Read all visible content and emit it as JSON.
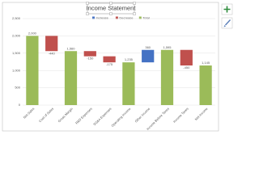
{
  "chart_data": {
    "type": "waterfall",
    "title": "Income Statement",
    "legend": [
      {
        "name": "Increase",
        "color": "#4472c4"
      },
      {
        "name": "Decrease",
        "color": "#c0504d"
      },
      {
        "name": "Total",
        "color": "#9bbb59"
      }
    ],
    "categories": [
      "Net Sales",
      "Cost of Sales",
      "Gross Margin",
      "R&D Expenses",
      "SG&A Expenses",
      "Operating Income",
      "Other Income",
      "Income Before Taxes",
      "Income Taxes",
      "Net Income"
    ],
    "values": [
      2000,
      -440,
      1560,
      -150,
      -175,
      1235,
      360,
      1595,
      -450,
      1145
    ],
    "value_labels": [
      "2,000",
      "-440",
      "1,560",
      "-150",
      "-175",
      "1,235",
      "360",
      "1,595",
      "-450",
      "1,145"
    ],
    "point_kind": [
      2,
      1,
      2,
      1,
      1,
      2,
      0,
      2,
      1,
      2
    ],
    "ylim": [
      0,
      2500
    ],
    "yticks": [
      0,
      500,
      {
        "value": 1000,
        "label": "1,000"
      },
      {
        "value": 1500,
        "label": "1,500"
      },
      {
        "value": 2000,
        "label": "2,000"
      },
      {
        "value": 2500,
        "label": "2,500"
      }
    ],
    "grid": true
  }
}
